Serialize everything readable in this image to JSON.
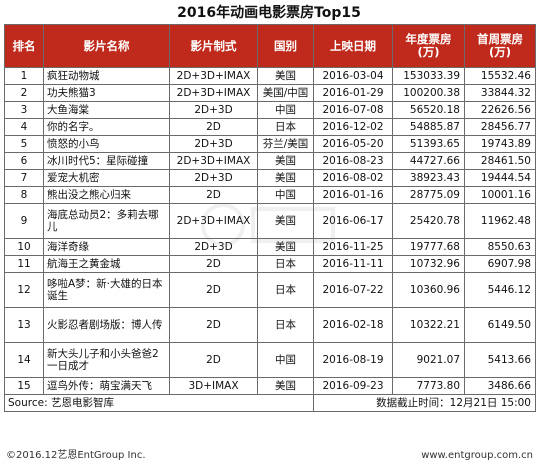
{
  "title": "2016年动画电影票房Top15",
  "headers": {
    "rank": "排名",
    "name": "影片名称",
    "format": "影片制式",
    "country": "国别",
    "date": "上映日期",
    "annual_box_office": "年度票房(万)",
    "first_week_box_office": "首周票房(万)"
  },
  "rows": [
    {
      "rank": "1",
      "name": "疯狂动物城",
      "format": "2D+3D+IMAX",
      "country": "美国",
      "date": "2016-03-04",
      "annual": "153033.39",
      "first_week": "15532.46"
    },
    {
      "rank": "2",
      "name": "功夫熊猫3",
      "format": "2D+3D+IMAX",
      "country": "美国/中国",
      "date": "2016-01-29",
      "annual": "100200.38",
      "first_week": "33844.32"
    },
    {
      "rank": "3",
      "name": "大鱼海棠",
      "format": "2D+3D",
      "country": "中国",
      "date": "2016-07-08",
      "annual": "56520.18",
      "first_week": "22626.56"
    },
    {
      "rank": "4",
      "name": "你的名字。",
      "format": "2D",
      "country": "日本",
      "date": "2016-12-02",
      "annual": "54885.87",
      "first_week": "28456.77"
    },
    {
      "rank": "5",
      "name": "愤怒的小鸟",
      "format": "2D+3D",
      "country": "芬兰/美国",
      "date": "2016-05-20",
      "annual": "51393.65",
      "first_week": "19743.89"
    },
    {
      "rank": "6",
      "name": "冰川时代5：星际碰撞",
      "format": "2D+3D+IMAX",
      "country": "美国",
      "date": "2016-08-23",
      "annual": "44727.66",
      "first_week": "28461.50"
    },
    {
      "rank": "7",
      "name": "爱宠大机密",
      "format": "2D+3D",
      "country": "美国",
      "date": "2016-08-02",
      "annual": "38923.43",
      "first_week": "19444.54"
    },
    {
      "rank": "8",
      "name": "熊出没之熊心归来",
      "format": "2D",
      "country": "中国",
      "date": "2016-01-16",
      "annual": "28775.09",
      "first_week": "10001.16"
    },
    {
      "rank": "9",
      "name": "海底总动员2：多莉去哪儿",
      "format": "2D+3D+IMAX",
      "country": "美国",
      "date": "2016-06-17",
      "annual": "25420.78",
      "first_week": "11962.48"
    },
    {
      "rank": "10",
      "name": "海洋奇缘",
      "format": "2D+3D",
      "country": "美国",
      "date": "2016-11-25",
      "annual": "19777.68",
      "first_week": "8550.63"
    },
    {
      "rank": "11",
      "name": "航海王之黄金城",
      "format": "2D",
      "country": "日本",
      "date": "2016-11-11",
      "annual": "10732.96",
      "first_week": "6907.98"
    },
    {
      "rank": "12",
      "name": "哆啦A梦：新·大雄的日本诞生",
      "format": "2D",
      "country": "日本",
      "date": "2016-07-22",
      "annual": "10360.96",
      "first_week": "5446.12"
    },
    {
      "rank": "13",
      "name": "火影忍者剧场版：博人传",
      "format": "2D",
      "country": "日本",
      "date": "2016-02-18",
      "annual": "10322.21",
      "first_week": "6149.50"
    },
    {
      "rank": "14",
      "name": "新大头儿子和小头爸爸2一日成才",
      "format": "2D",
      "country": "中国",
      "date": "2016-08-19",
      "annual": "9021.07",
      "first_week": "5413.66"
    },
    {
      "rank": "15",
      "name": "逗鸟外传：萌宝满天飞",
      "format": "3D+IMAX",
      "country": "美国",
      "date": "2016-09-23",
      "annual": "7773.80",
      "first_week": "3486.66"
    }
  ],
  "source": "Source: 艺恩电影智库",
  "data_cutoff": "数据截止时间：12月21日 15:00",
  "footer_left": "©2016.12艺恩EntGroup Inc.",
  "footer_right": "www.entgroup.com.cn",
  "colors": {
    "header_bg": "#bf2a1c",
    "header_text": "#ffffff",
    "border": "#6a6a6a"
  }
}
